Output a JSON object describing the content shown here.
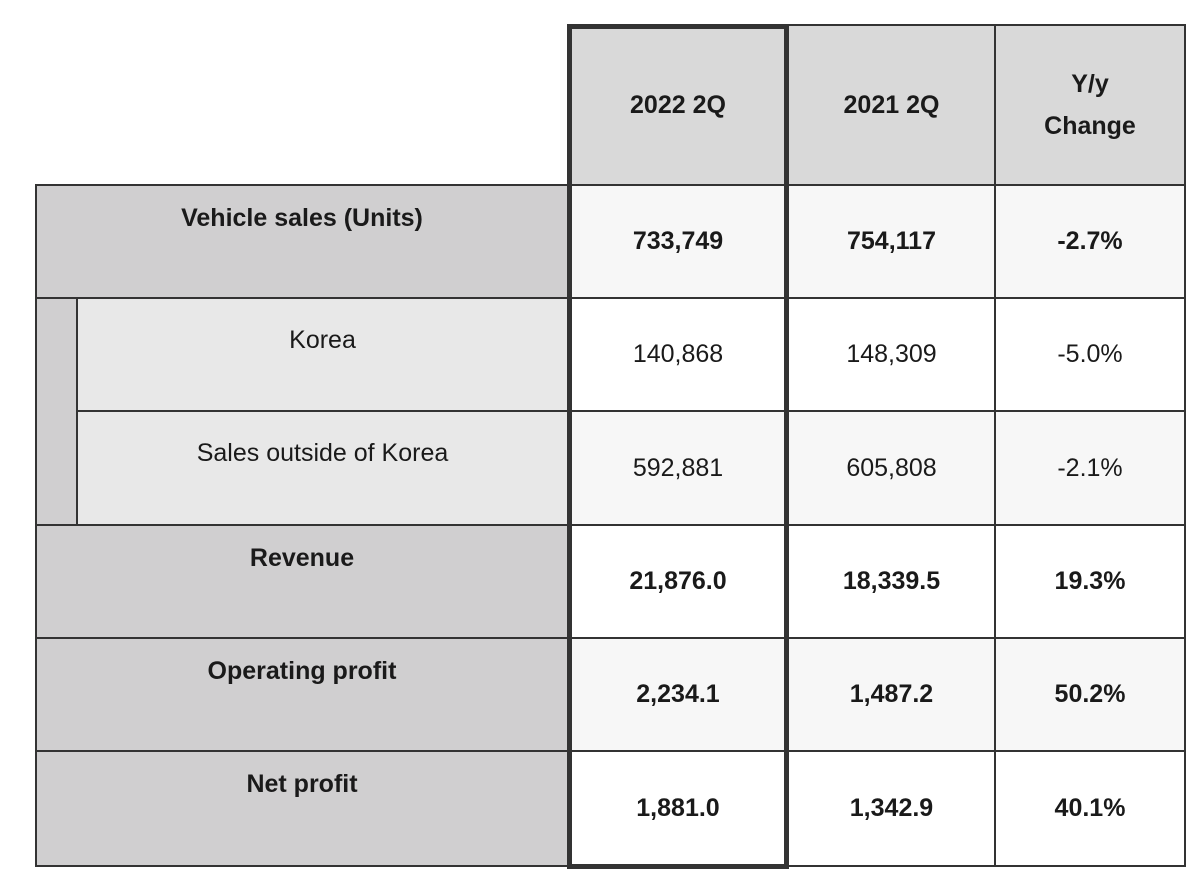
{
  "columns": [
    {
      "label": "2022 2Q"
    },
    {
      "label": "2021 2Q"
    },
    {
      "label": "Y/y Change"
    }
  ],
  "rows": [
    {
      "label": "Vehicle sales (Units)",
      "values": [
        "733,749",
        "754,117",
        "-2.7%"
      ],
      "bold": true,
      "indent": false
    },
    {
      "label": "Korea",
      "values": [
        "140,868",
        "148,309",
        "-5.0%"
      ],
      "bold": false,
      "indent": true
    },
    {
      "label": "Sales outside of Korea",
      "values": [
        "592,881",
        "605,808",
        "-2.1%"
      ],
      "bold": false,
      "indent": true
    },
    {
      "label": "Revenue",
      "values": [
        "21,876.0",
        "18,339.5",
        "19.3%"
      ],
      "bold": true,
      "indent": false
    },
    {
      "label": "Operating profit",
      "values": [
        "2,234.1",
        "1,487.2",
        "50.2%"
      ],
      "bold": true,
      "indent": false
    },
    {
      "label": "Net profit",
      "values": [
        "1,881.0",
        "1,342.9",
        "40.1%"
      ],
      "bold": true,
      "indent": false
    }
  ],
  "colors": {
    "header_bg": "#d9d9d9",
    "label_bg": "#d0cfd0",
    "sublabel_bg": "#e8e8e8",
    "border": "#333333"
  }
}
